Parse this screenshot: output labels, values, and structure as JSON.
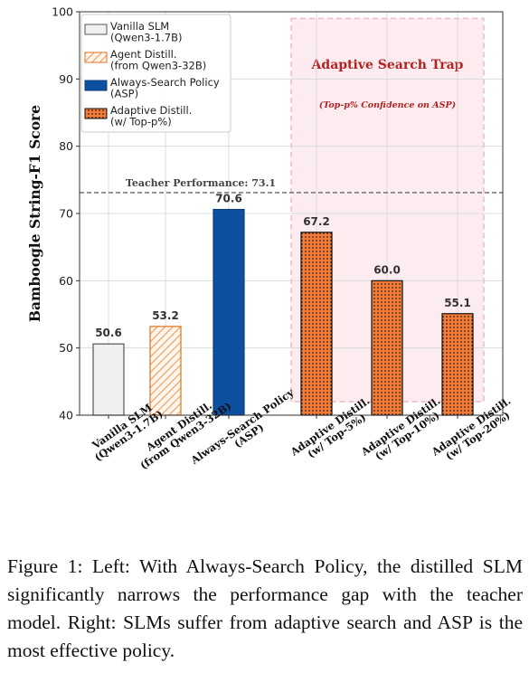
{
  "chart_data": {
    "type": "bar",
    "ylabel": "Bamboogle String-F1 Score",
    "ylim": [
      40,
      100
    ],
    "yticks": [
      40,
      50,
      60,
      70,
      80,
      90,
      100
    ],
    "grid": true,
    "legend_position": "top-left",
    "categories": [
      [
        "Vanilla SLM",
        "(Qwen3-1.7B)"
      ],
      [
        "Agent Distill.",
        "(from Qwen3-32B)"
      ],
      [
        "Always-Search Policy",
        "(ASP)"
      ],
      [
        "Adaptive Distill.",
        "(w/ Top-5%)"
      ],
      [
        "Adaptive Distill.",
        "(w/ Top-10%)"
      ],
      [
        "Adaptive Distill.",
        "(w/ Top-20%)"
      ]
    ],
    "values": [
      50.6,
      53.2,
      70.6,
      67.2,
      60.0,
      55.1
    ],
    "value_labels": [
      "50.6",
      "53.2",
      "70.6",
      "67.2",
      "60.0",
      "55.1"
    ],
    "bar_styles": [
      "vanilla",
      "agent",
      "asp",
      "adaptive",
      "adaptive",
      "adaptive"
    ],
    "legend": [
      {
        "style": "vanilla",
        "lines": [
          "Vanilla SLM",
          "(Qwen3-1.7B)"
        ]
      },
      {
        "style": "agent",
        "lines": [
          "Agent Distill.",
          "(from Qwen3-32B)"
        ]
      },
      {
        "style": "asp",
        "lines": [
          "Always-Search Policy",
          "(ASP)"
        ]
      },
      {
        "style": "adaptive",
        "lines": [
          "Adaptive Distill.",
          "(w/ Top-p%)"
        ]
      }
    ],
    "reference_line": {
      "value": 73.1,
      "label": "Teacher Performance: 73.1"
    },
    "annotation_region": {
      "title": "Adaptive Search Trap",
      "subtitle": "(Top-p% Confidence on ASP)",
      "y_range": [
        42,
        99
      ]
    },
    "colors": {
      "vanilla_fill": "#f0f0f0",
      "vanilla_edge": "#555555",
      "agent_stripe": "#f2a15a",
      "agent_edge": "#e07020",
      "asp_fill": "#0d4fa0",
      "asp_edge": "#0a3d7a",
      "adaptive_fill": "#f07b3a",
      "adaptive_dot": "#2a1a10",
      "trap_fill": "#fdecef",
      "trap_edge": "#f0b8c0",
      "trap_text": "#b22222"
    }
  },
  "caption": "Figure 1: Left: With Always-Search Policy, the distilled SLM significantly narrows the performance gap with the teacher model. Right: SLMs suffer from adaptive search and ASP is the most effective policy."
}
